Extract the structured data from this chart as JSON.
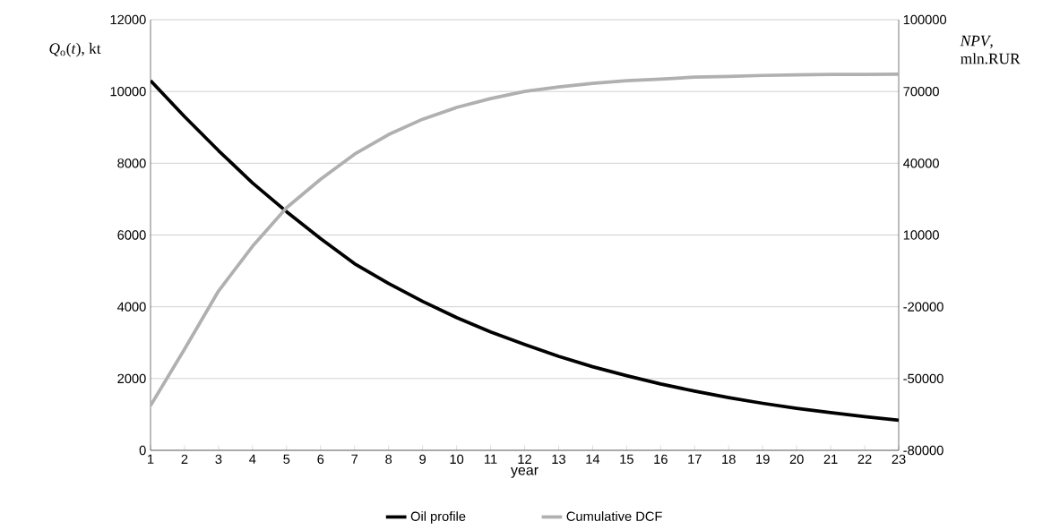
{
  "chart_data": {
    "type": "line",
    "categories": [
      "1",
      "2",
      "3",
      "4",
      "5",
      "6",
      "7",
      "8",
      "9",
      "10",
      "11",
      "12",
      "13",
      "14",
      "15",
      "16",
      "17",
      "18",
      "19",
      "20",
      "21",
      "22",
      "23"
    ],
    "series": [
      {
        "name": "Oil profile",
        "color": "#000000",
        "values": [
          10300,
          9300,
          8350,
          7450,
          6650,
          5900,
          5200,
          4650,
          4150,
          3700,
          3300,
          2950,
          2620,
          2330,
          2080,
          1850,
          1650,
          1470,
          1310,
          1170,
          1050,
          940,
          840
        ]
      },
      {
        "name": "Cumulative DCF",
        "color": "#b0b0b0",
        "axis": "y2",
        "values": [
          -61300,
          -37700,
          -13400,
          5300,
          21400,
          33300,
          43800,
          52000,
          58400,
          63300,
          67000,
          70000,
          71900,
          73400,
          74500,
          75200,
          76000,
          76300,
          76700,
          76900,
          77100,
          77100,
          77200
        ]
      }
    ],
    "xlabel": "year",
    "ylabel": "*Q*$_{o}$(*t*), kt",
    "y2label": "*NPV*, mln.RUR",
    "ylim": [
      0,
      12000
    ],
    "yticks": [
      0,
      2000,
      4000,
      6000,
      8000,
      10000,
      12000
    ],
    "y2lim": [
      -80000,
      100000
    ],
    "y2ticks": [
      -80000,
      -50000,
      -20000,
      10000,
      40000,
      70000,
      100000
    ],
    "grid": "y",
    "legend": "bottom",
    "marker": "none"
  }
}
